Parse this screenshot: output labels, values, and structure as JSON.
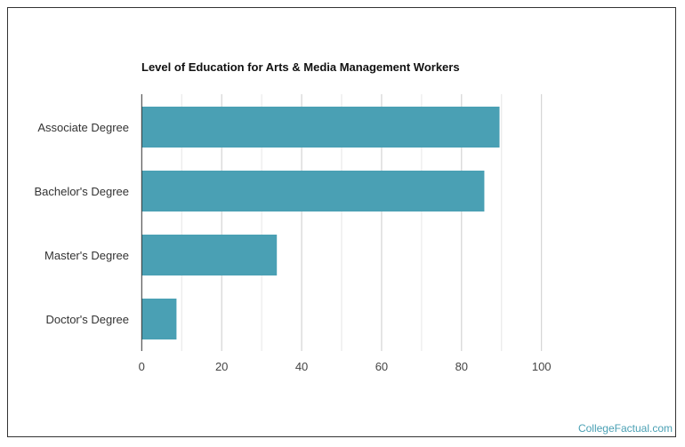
{
  "chart_data": {
    "type": "bar",
    "orientation": "horizontal",
    "title": "Level of Education for Arts & Media Management Workers",
    "categories": [
      "Associate Degree",
      "Bachelor's Degree",
      "Master's Degree",
      "Doctor's Degree"
    ],
    "values": [
      89.5,
      85.7,
      33.8,
      8.7
    ],
    "xlim": [
      0,
      100
    ],
    "xticks": [
      0,
      20,
      40,
      60,
      80,
      100
    ],
    "grid": true,
    "bar_color": "#4aa0b4",
    "xlabel": "",
    "ylabel": ""
  },
  "footer": {
    "credit": "CollegeFactual.com"
  }
}
